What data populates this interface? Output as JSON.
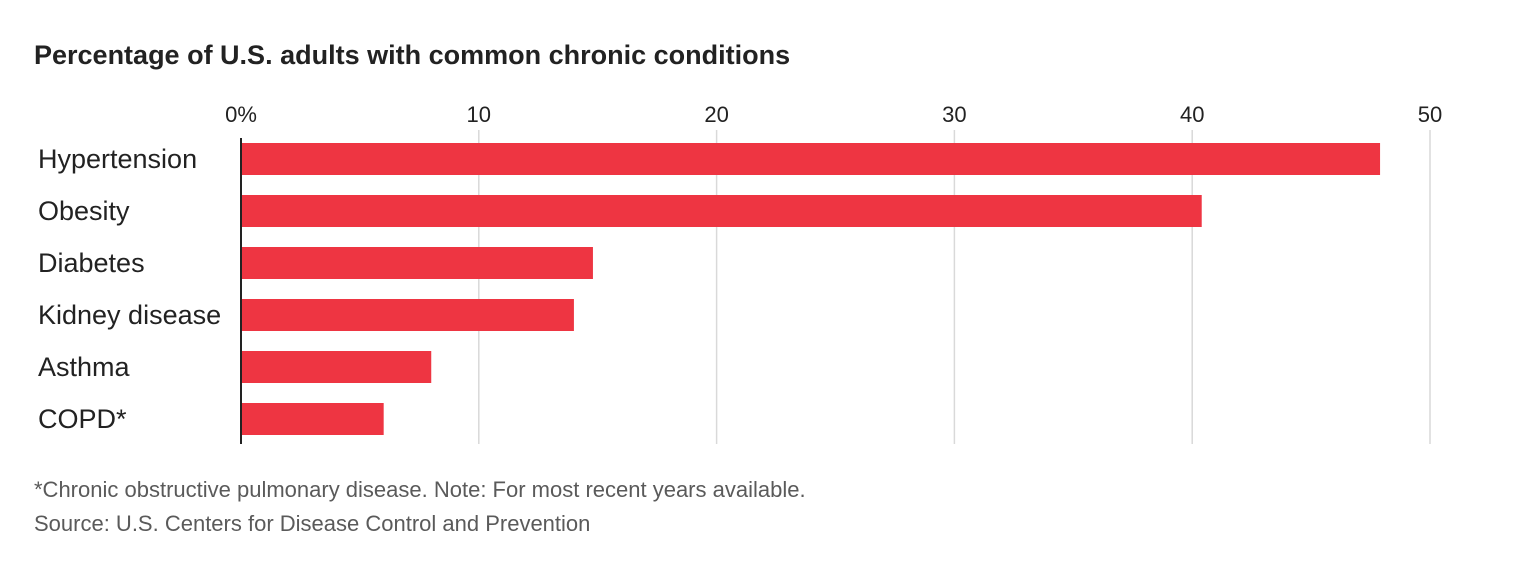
{
  "title": "Percentage of U.S. adults with common chronic conditions",
  "colors": {
    "bar": "#ee3542",
    "grid": "#d9d9d9",
    "axis": "#222222",
    "text": "#222222",
    "footnote": "#5a5a5a"
  },
  "chart_data": {
    "type": "bar",
    "orientation": "horizontal",
    "title": "Percentage of U.S. adults with common chronic conditions",
    "xlabel": "",
    "ylabel": "",
    "xlim": [
      0,
      50
    ],
    "ticks": [
      0,
      10,
      20,
      30,
      40,
      50
    ],
    "tick_labels": [
      "0%",
      "10",
      "20",
      "30",
      "40",
      "50"
    ],
    "tick_position": "top",
    "grid": true,
    "categories": [
      "Hypertension",
      "Obesity",
      "Diabetes",
      "Kidney disease",
      "Asthma",
      "COPD*"
    ],
    "values": [
      47.9,
      40.4,
      14.8,
      14.0,
      8.0,
      6.0
    ]
  },
  "footnotes": {
    "note": "*Chronic obstructive pulmonary disease. Note: For most recent years available.",
    "source": "Source: U.S. Centers for Disease Control and Prevention"
  }
}
